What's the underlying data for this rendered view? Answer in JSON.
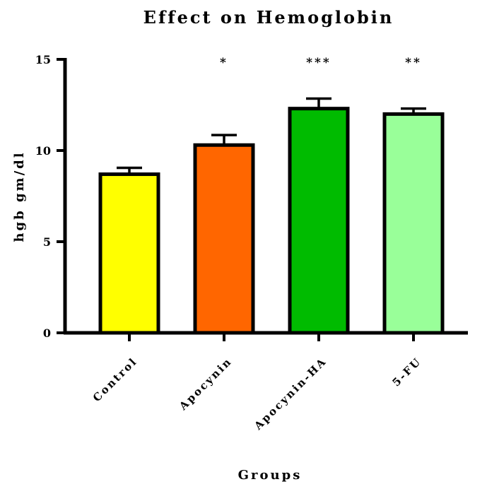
{
  "chart_data": {
    "type": "bar",
    "title": "Effect on Hemoglobin",
    "xlabel": "Groups",
    "ylabel": "hgb gm/dl",
    "ylim": [
      0,
      15
    ],
    "yticks": [
      "0",
      "5",
      "10",
      "15"
    ],
    "categories": [
      "Control",
      "Apocynin",
      "Apocynin-HA",
      "5-FU"
    ],
    "values": [
      8.7,
      10.3,
      12.3,
      12.0
    ],
    "errors": [
      0.35,
      0.55,
      0.55,
      0.3
    ],
    "significance": [
      "",
      "*",
      "***",
      "**"
    ],
    "colors": [
      "#ffff00",
      "#ff6600",
      "#00bb00",
      "#99ff99"
    ],
    "grid": false
  }
}
